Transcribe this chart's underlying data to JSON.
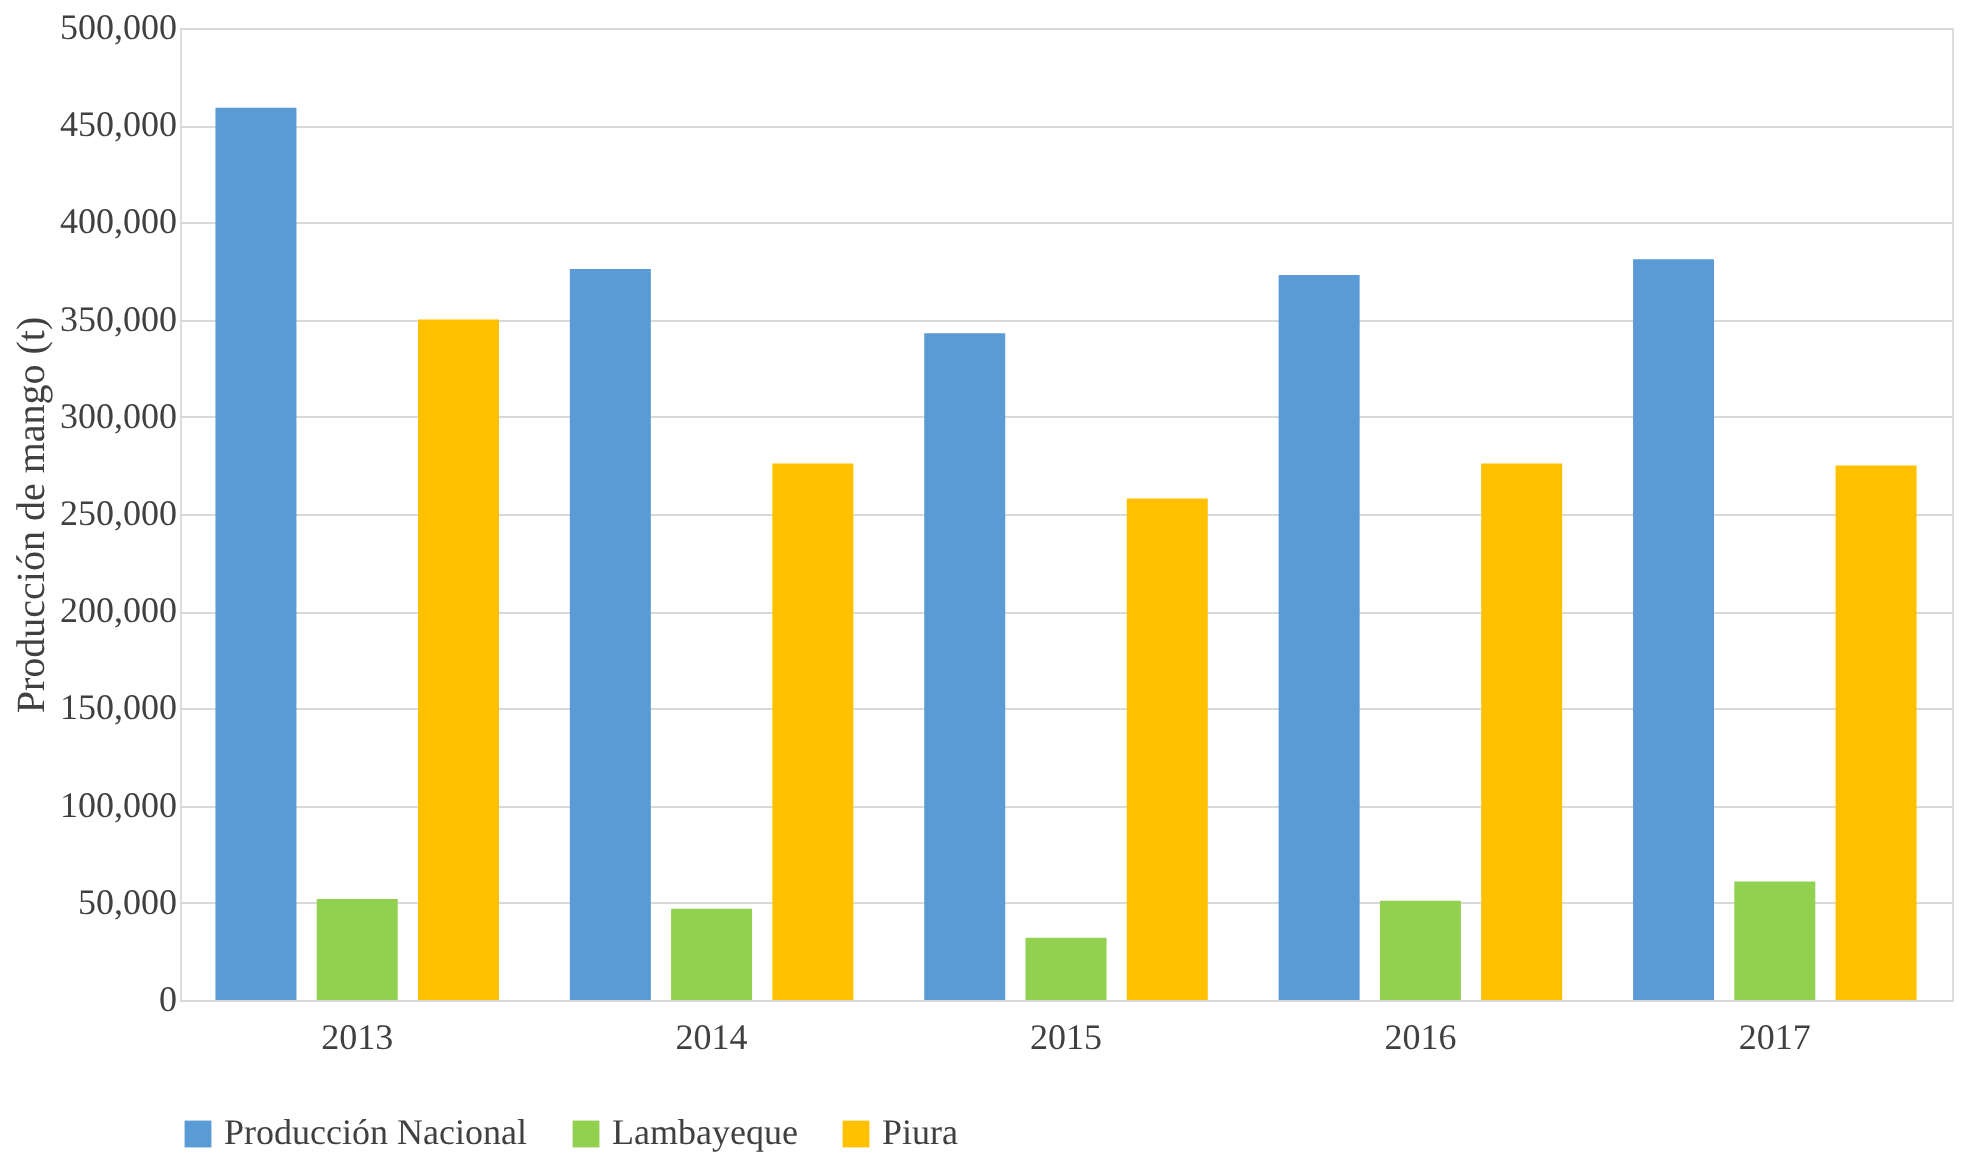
{
  "chart_data": {
    "type": "bar",
    "ylabel": "Producción de mango (t)",
    "categories": [
      "2013",
      "2014",
      "2015",
      "2016",
      "2017"
    ],
    "series": [
      {
        "name": "Producción Nacional",
        "color": "#5b9bd5",
        "values": [
          459000,
          376000,
          343000,
          373000,
          381000
        ]
      },
      {
        "name": "Lambayeque",
        "color": "#92d050",
        "values": [
          52000,
          47000,
          32000,
          51000,
          61000
        ]
      },
      {
        "name": "Piura",
        "color": "#ffc000",
        "values": [
          350000,
          276000,
          258000,
          276000,
          275000
        ]
      }
    ],
    "ylim": [
      0,
      500000
    ],
    "yticks": [
      0,
      {
        "value": 50000,
        "label": "50,000"
      },
      {
        "value": 100000,
        "label": "100,000"
      },
      {
        "value": 150000,
        "label": "150,000"
      },
      {
        "value": 200000,
        "label": "200,000"
      },
      {
        "value": 250000,
        "label": "250,000"
      },
      {
        "value": 300000,
        "label": "300,000"
      },
      {
        "value": 350000,
        "label": "350,000"
      },
      {
        "value": 400000,
        "label": "400,000"
      },
      {
        "value": 450000,
        "label": "450,000"
      },
      {
        "value": 500000,
        "label": "500,000"
      }
    ],
    "grid": "y",
    "legend": "bottom"
  }
}
